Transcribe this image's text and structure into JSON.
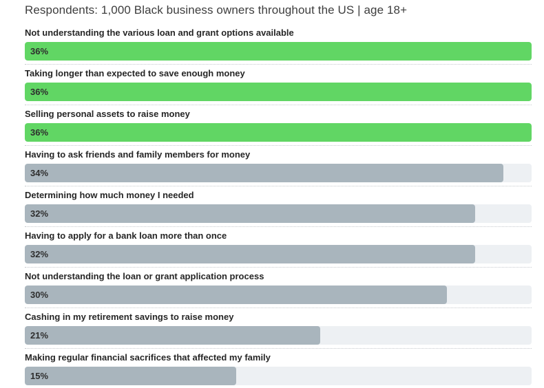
{
  "title": "Respondents: 1,000 Black business owners throughout the US | age 18+",
  "chart_data": {
    "type": "bar",
    "orientation": "horizontal",
    "title": "Respondents: 1,000 Black business owners throughout the US | age 18+",
    "unit": "%",
    "scale_max": 36,
    "grid": false,
    "legend": false,
    "categories": [
      "Not understanding the various loan and grant options available",
      "Taking longer than expected to save enough money",
      "Selling personal assets to raise money",
      "Having to ask friends and family members for money",
      "Determining how much money I needed",
      "Having to apply for a bank loan more than once",
      "Not understanding the loan or grant application process",
      "Cashing in my retirement savings to raise money",
      "Making regular financial sacrifices that affected my family"
    ],
    "values": [
      36,
      36,
      36,
      34,
      32,
      32,
      30,
      21,
      15
    ],
    "bar_color_keys": [
      "green",
      "green",
      "green",
      "gray",
      "gray",
      "gray",
      "gray",
      "gray",
      "gray"
    ],
    "colors": {
      "green": "#61d664",
      "gray": "#a9b5bd",
      "track": "#edf0f3",
      "separator": "#c5c9cd"
    }
  }
}
